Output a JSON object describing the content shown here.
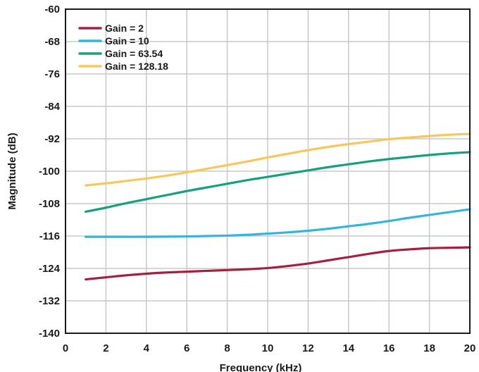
{
  "chart_data": {
    "type": "line",
    "title": "",
    "xlabel": "Frequency (kHz)",
    "ylabel": "Magnitude (dB)",
    "xlim": [
      0,
      20
    ],
    "ylim": [
      -140,
      -60
    ],
    "xticks": [
      0,
      2,
      4,
      6,
      8,
      10,
      12,
      14,
      16,
      18,
      20
    ],
    "yticks": [
      -60,
      -68,
      -76,
      -84,
      -92,
      -100,
      -108,
      -116,
      -124,
      -132,
      -140
    ],
    "grid": true,
    "legend_position": "top-left",
    "series": [
      {
        "name": "Gain = 2",
        "color": "#a3213f",
        "x": [
          1,
          2,
          3,
          4,
          5,
          6,
          7,
          8,
          9,
          10,
          11,
          12,
          13,
          14,
          15,
          16,
          17,
          18,
          19,
          20
        ],
        "y": [
          -126.7,
          -126.2,
          -125.7,
          -125.3,
          -125.0,
          -124.8,
          -124.6,
          -124.4,
          -124.2,
          -123.9,
          -123.4,
          -122.8,
          -122.0,
          -121.2,
          -120.4,
          -119.7,
          -119.3,
          -119.0,
          -118.9,
          -118.8
        ]
      },
      {
        "name": "Gain = 10",
        "color": "#33b5de",
        "x": [
          1,
          2,
          3,
          4,
          5,
          6,
          7,
          8,
          9,
          10,
          11,
          12,
          13,
          14,
          15,
          16,
          17,
          18,
          19,
          20
        ],
        "y": [
          -116.2,
          -116.2,
          -116.2,
          -116.2,
          -116.15,
          -116.1,
          -116.0,
          -115.9,
          -115.7,
          -115.4,
          -115.1,
          -114.7,
          -114.2,
          -113.6,
          -113.0,
          -112.3,
          -111.5,
          -110.8,
          -110.1,
          -109.4
        ]
      },
      {
        "name": "Gain = 63.54",
        "color": "#16a080",
        "x": [
          1,
          2,
          3,
          4,
          5,
          6,
          7,
          8,
          9,
          10,
          11,
          12,
          13,
          14,
          15,
          16,
          17,
          18,
          19,
          20
        ],
        "y": [
          -110.0,
          -109.0,
          -107.9,
          -106.9,
          -105.9,
          -104.9,
          -104.0,
          -103.1,
          -102.2,
          -101.4,
          -100.6,
          -99.8,
          -99.0,
          -98.3,
          -97.6,
          -97.0,
          -96.5,
          -96.0,
          -95.6,
          -95.3
        ]
      },
      {
        "name": "Gain = 128.18",
        "color": "#f6c85a",
        "x": [
          1,
          2,
          3,
          4,
          5,
          6,
          7,
          8,
          9,
          10,
          11,
          12,
          13,
          14,
          15,
          16,
          17,
          18,
          19,
          20
        ],
        "y": [
          -103.5,
          -103.0,
          -102.4,
          -101.8,
          -101.1,
          -100.3,
          -99.4,
          -98.5,
          -97.6,
          -96.6,
          -95.7,
          -94.8,
          -94.0,
          -93.3,
          -92.7,
          -92.1,
          -91.7,
          -91.3,
          -91.0,
          -90.8
        ]
      }
    ]
  }
}
